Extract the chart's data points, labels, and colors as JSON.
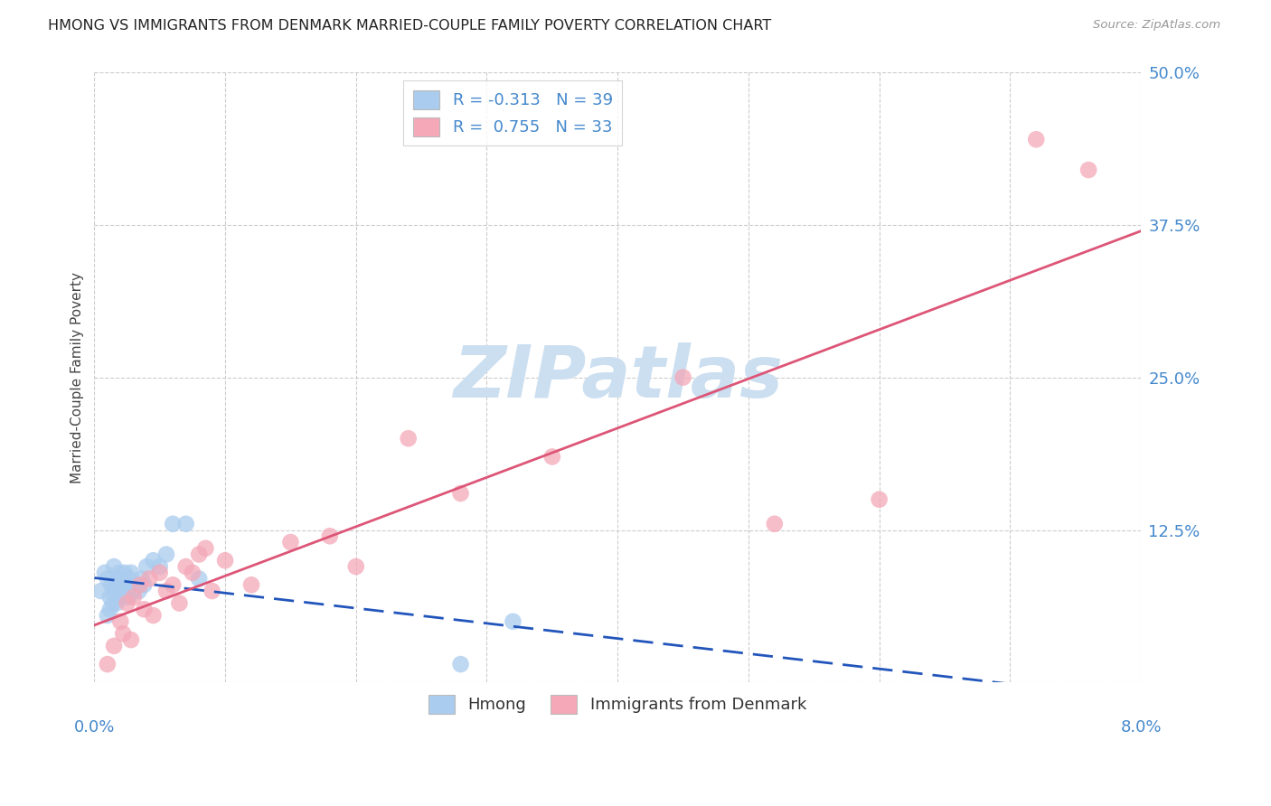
{
  "title": "HMONG VS IMMIGRANTS FROM DENMARK MARRIED-COUPLE FAMILY POVERTY CORRELATION CHART",
  "source": "Source: ZipAtlas.com",
  "ylabel": "Married-Couple Family Poverty",
  "xlim": [
    0.0,
    8.0
  ],
  "ylim": [
    0.0,
    50.0
  ],
  "ytick_vals": [
    0.0,
    12.5,
    25.0,
    37.5,
    50.0
  ],
  "ytick_labels": [
    "",
    "12.5%",
    "25.0%",
    "37.5%",
    "50.0%"
  ],
  "legend_blue_R": "-0.313",
  "legend_blue_N": "39",
  "legend_pink_R": "0.755",
  "legend_pink_N": "33",
  "blue_color": "#aaccee",
  "pink_color": "#f4a8b8",
  "trend_blue_color": "#2255bb",
  "trend_pink_color": "#dd5577",
  "watermark_text": "ZIPatlas",
  "watermark_color": "#ccdff0",
  "hmong_x": [
    0.05,
    0.08,
    0.1,
    0.1,
    0.12,
    0.12,
    0.13,
    0.14,
    0.15,
    0.15,
    0.16,
    0.17,
    0.18,
    0.18,
    0.19,
    0.2,
    0.2,
    0.21,
    0.22,
    0.23,
    0.24,
    0.25,
    0.26,
    0.27,
    0.28,
    0.3,
    0.32,
    0.34,
    0.36,
    0.38,
    0.4,
    0.45,
    0.5,
    0.55,
    0.6,
    0.7,
    0.8,
    2.8,
    3.2
  ],
  "hmong_y": [
    7.5,
    9.0,
    5.5,
    8.5,
    6.0,
    7.0,
    8.0,
    6.5,
    9.5,
    7.5,
    8.0,
    6.5,
    7.5,
    8.5,
    9.0,
    7.0,
    8.0,
    7.5,
    8.5,
    9.0,
    7.5,
    8.0,
    7.0,
    8.5,
    9.0,
    7.5,
    8.0,
    7.5,
    8.5,
    8.0,
    9.5,
    10.0,
    9.5,
    10.5,
    13.0,
    13.0,
    8.5,
    1.5,
    5.0
  ],
  "denmark_x": [
    0.1,
    0.15,
    0.2,
    0.22,
    0.25,
    0.28,
    0.3,
    0.35,
    0.38,
    0.42,
    0.45,
    0.5,
    0.55,
    0.6,
    0.65,
    0.7,
    0.75,
    0.8,
    0.85,
    0.9,
    1.0,
    1.2,
    1.5,
    1.8,
    2.0,
    2.4,
    2.8,
    3.5,
    4.5,
    5.2,
    6.0,
    7.2,
    7.6
  ],
  "denmark_y": [
    1.5,
    3.0,
    5.0,
    4.0,
    6.5,
    3.5,
    7.0,
    8.0,
    6.0,
    8.5,
    5.5,
    9.0,
    7.5,
    8.0,
    6.5,
    9.5,
    9.0,
    10.5,
    11.0,
    7.5,
    10.0,
    8.0,
    11.5,
    12.0,
    9.5,
    20.0,
    15.5,
    18.5,
    25.0,
    13.0,
    15.0,
    44.5,
    42.0
  ]
}
